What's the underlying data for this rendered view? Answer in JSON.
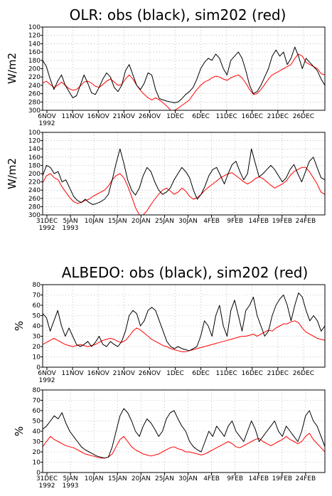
{
  "titles": {
    "olr": "OLR: obs (black), sim202 (red)",
    "albedo": "ALBEDO: obs (black), sim202 (red)"
  },
  "colors": {
    "obs": "#000000",
    "sim": "#ff0000",
    "grid": "#9a9a9a"
  },
  "chart_data": [
    {
      "type": "line",
      "group": "olr",
      "ylabel": "W/m2",
      "ylim": [
        300,
        100
      ],
      "y_ticks": [
        100,
        120,
        140,
        160,
        180,
        200,
        220,
        240,
        260,
        280,
        300
      ],
      "x_tick_labels": [
        "6NOV",
        "11NOV",
        "16NOV",
        "21NOV",
        "26NOV",
        "1DEC",
        "6DEC",
        "11DEC",
        "16DEC",
        "21DEC",
        "26DEC"
      ],
      "x_year_label": "1992",
      "grid": true,
      "series": [
        {
          "name": "obs",
          "color": "#000000",
          "values": [
            180,
            195,
            225,
            250,
            230,
            215,
            240,
            255,
            270,
            265,
            240,
            215,
            235,
            258,
            262,
            245,
            225,
            210,
            220,
            245,
            255,
            240,
            205,
            190,
            215,
            240,
            250,
            235,
            210,
            215,
            250,
            272,
            275,
            278,
            280,
            282,
            280,
            272,
            262,
            255,
            245,
            225,
            200,
            185,
            175,
            180,
            165,
            175,
            200,
            215,
            180,
            170,
            160,
            175,
            205,
            240,
            260,
            255,
            240,
            220,
            200,
            170,
            155,
            170,
            160,
            190,
            175,
            148,
            170,
            200,
            175,
            185,
            195,
            205,
            225,
            240
          ]
        },
        {
          "name": "sim202",
          "color": "#ff0000",
          "values": [
            235,
            230,
            238,
            245,
            240,
            232,
            240,
            248,
            252,
            250,
            242,
            232,
            230,
            235,
            242,
            245,
            238,
            230,
            225,
            232,
            240,
            238,
            225,
            215,
            225,
            240,
            252,
            262,
            270,
            275,
            270,
            275,
            282,
            290,
            300,
            300,
            295,
            288,
            282,
            275,
            262,
            250,
            240,
            232,
            228,
            222,
            218,
            220,
            225,
            228,
            222,
            218,
            215,
            222,
            235,
            250,
            262,
            260,
            250,
            238,
            225,
            215,
            210,
            205,
            200,
            195,
            190,
            175,
            165,
            170,
            185,
            190,
            195,
            200,
            212,
            215
          ]
        }
      ]
    },
    {
      "type": "line",
      "group": "olr",
      "ylabel": "W/m2",
      "ylim": [
        300,
        100
      ],
      "y_ticks": [
        100,
        120,
        140,
        160,
        180,
        200,
        220,
        240,
        260,
        280,
        300
      ],
      "x_tick_labels": [
        "31DEC",
        "5JAN",
        "10JAN",
        "15JAN",
        "20JAN",
        "25JAN",
        "30JAN",
        "4FEB",
        "9FEB",
        "14FEB",
        "19FEB",
        "24FEB"
      ],
      "x_year_labels": [
        "1992",
        "1993"
      ],
      "grid": true,
      "series": [
        {
          "name": "obs",
          "color": "#000000",
          "values": [
            205,
            180,
            185,
            200,
            195,
            220,
            215,
            235,
            255,
            265,
            270,
            262,
            270,
            275,
            272,
            268,
            262,
            250,
            215,
            175,
            140,
            175,
            215,
            240,
            252,
            235,
            205,
            185,
            195,
            220,
            240,
            250,
            245,
            235,
            215,
            200,
            185,
            195,
            210,
            240,
            262,
            250,
            230,
            205,
            190,
            185,
            205,
            225,
            200,
            178,
            170,
            195,
            215,
            200,
            140,
            175,
            208,
            200,
            190,
            180,
            190,
            205,
            220,
            210,
            190,
            178,
            200,
            220,
            195,
            170,
            160,
            185,
            210,
            215
          ]
        },
        {
          "name": "sim202",
          "color": "#ff0000",
          "values": [
            222,
            205,
            200,
            210,
            215,
            232,
            245,
            258,
            268,
            272,
            270,
            265,
            262,
            255,
            250,
            245,
            240,
            230,
            215,
            205,
            200,
            210,
            230,
            255,
            282,
            300,
            300,
            290,
            275,
            262,
            250,
            240,
            235,
            242,
            250,
            245,
            235,
            242,
            255,
            262,
            258,
            250,
            240,
            232,
            225,
            218,
            210,
            205,
            200,
            198,
            205,
            212,
            220,
            225,
            220,
            212,
            208,
            212,
            220,
            228,
            235,
            230,
            225,
            218,
            205,
            195,
            190,
            185,
            185,
            195,
            210,
            225,
            245,
            250
          ]
        }
      ]
    },
    {
      "type": "line",
      "group": "albedo",
      "ylabel": "%",
      "ylim": [
        0,
        80
      ],
      "y_ticks": [
        0,
        10,
        20,
        30,
        40,
        50,
        60,
        70,
        80
      ],
      "x_tick_labels": [
        "6NOV",
        "11NOV",
        "16NOV",
        "21NOV",
        "26NOV",
        "1DEC",
        "6DEC",
        "11DEC",
        "16DEC",
        "21DEC",
        "26DEC"
      ],
      "x_year_label": "1992",
      "grid": true,
      "series": [
        {
          "name": "obs",
          "color": "#000000",
          "values": [
            52,
            48,
            35,
            45,
            55,
            40,
            30,
            38,
            30,
            22,
            20,
            22,
            25,
            20,
            24,
            30,
            22,
            20,
            25,
            22,
            20,
            25,
            35,
            50,
            55,
            52,
            40,
            45,
            55,
            58,
            55,
            45,
            35,
            25,
            20,
            18,
            20,
            18,
            17,
            16,
            18,
            20,
            30,
            45,
            40,
            30,
            50,
            60,
            40,
            30,
            55,
            65,
            50,
            35,
            55,
            60,
            68,
            50,
            40,
            30,
            35,
            50,
            60,
            66,
            70,
            60,
            45,
            60,
            72,
            68,
            55,
            45,
            50,
            45,
            35,
            40
          ]
        },
        {
          "name": "sim202",
          "color": "#ff0000",
          "values": [
            22,
            24,
            26,
            28,
            26,
            24,
            22,
            21,
            20,
            21,
            22,
            21,
            20,
            21,
            22,
            24,
            26,
            27,
            28,
            27,
            25,
            24,
            26,
            30,
            35,
            38,
            36,
            33,
            30,
            27,
            25,
            23,
            21,
            20,
            18,
            17,
            16,
            15,
            15,
            16,
            17,
            18,
            19,
            20,
            21,
            22,
            23,
            24,
            25,
            26,
            27,
            28,
            29,
            30,
            30,
            31,
            32,
            30,
            32,
            34,
            36,
            35,
            38,
            40,
            42,
            42,
            44,
            45,
            43,
            38,
            34,
            32,
            30,
            28,
            27,
            26
          ]
        }
      ]
    },
    {
      "type": "line",
      "group": "albedo",
      "ylabel": "%",
      "ylim": [
        0,
        80
      ],
      "y_ticks": [
        0,
        10,
        20,
        30,
        40,
        50,
        60,
        70,
        80
      ],
      "x_tick_labels": [
        "31DEC",
        "5JAN",
        "10JAN",
        "15JAN",
        "20JAN",
        "25JAN",
        "30JAN",
        "4FEB",
        "9FEB",
        "14FEB",
        "19FEB",
        "24FEB"
      ],
      "x_year_labels": [
        "1992",
        "1993"
      ],
      "grid": true,
      "series": [
        {
          "name": "obs",
          "color": "#000000",
          "values": [
            42,
            45,
            50,
            55,
            52,
            58,
            48,
            40,
            35,
            30,
            25,
            22,
            20,
            18,
            16,
            15,
            14,
            15,
            25,
            40,
            55,
            62,
            58,
            50,
            40,
            35,
            45,
            52,
            48,
            42,
            35,
            40,
            52,
            58,
            60,
            52,
            45,
            40,
            30,
            25,
            22,
            20,
            30,
            40,
            35,
            45,
            40,
            35,
            45,
            50,
            40,
            35,
            30,
            40,
            50,
            42,
            30,
            35,
            40,
            45,
            50,
            40,
            35,
            45,
            40,
            35,
            30,
            40,
            55,
            60,
            50,
            45,
            35,
            25
          ]
        },
        {
          "name": "sim202",
          "color": "#ff0000",
          "values": [
            25,
            30,
            35,
            32,
            30,
            28,
            26,
            25,
            24,
            22,
            20,
            18,
            17,
            16,
            15,
            14,
            14,
            15,
            18,
            25,
            32,
            35,
            30,
            25,
            22,
            20,
            18,
            17,
            16,
            17,
            18,
            20,
            22,
            24,
            25,
            23,
            22,
            20,
            20,
            19,
            18,
            17,
            18,
            20,
            22,
            24,
            26,
            28,
            30,
            28,
            25,
            24,
            26,
            28,
            30,
            32,
            33,
            30,
            28,
            26,
            28,
            30,
            32,
            35,
            32,
            30,
            28,
            30,
            35,
            38,
            32,
            28,
            24,
            20
          ]
        }
      ]
    }
  ]
}
